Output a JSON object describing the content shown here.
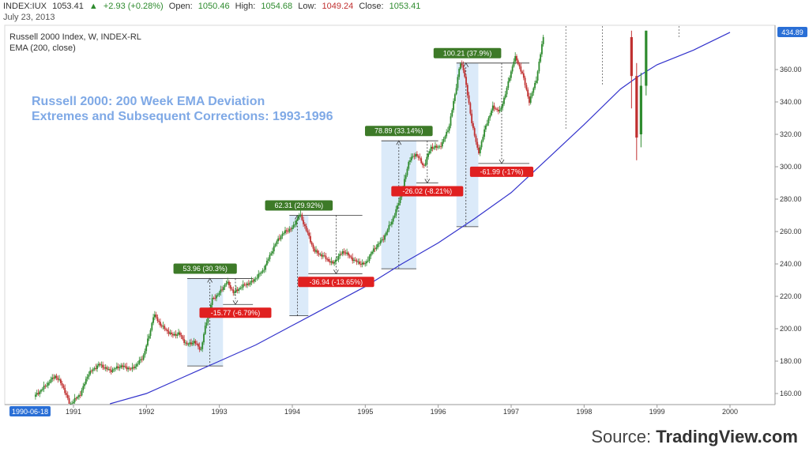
{
  "header": {
    "symbol": "INDEX:IUX",
    "last": "1053.41",
    "change_arrow": "▲",
    "change": "+2.93 (+0.28%)",
    "open_label": "Open:",
    "open": "1050.46",
    "high_label": "High:",
    "high": "1054.68",
    "low_label": "Low:",
    "low": "1049.24",
    "close_label": "Close:",
    "close": "1053.41",
    "date": "July 23, 2013"
  },
  "source": {
    "prefix": "Source:",
    "brand": "TradingView.com"
  },
  "colors": {
    "up": "#2e8b2e",
    "down": "#c03030",
    "ema": "#3333cc",
    "range_fill": "#cfe3f7",
    "gain_badge": "#3d7a28",
    "loss_badge": "#e02020",
    "axis_tag": "#2a6fd6"
  },
  "chart_data": {
    "type": "candlestick",
    "title": "Russell 2000 Index, W, INDEX-RL",
    "indicator": "EMA (200, close)",
    "annotation_title": [
      "Russell 2000: 200 Week EMA Deviation",
      "Extremes and Subsequent Corrections: 1993-1996"
    ],
    "x_ticks": [
      "1991",
      "1992",
      "1993",
      "1994",
      "1995",
      "1996",
      "1997",
      "1998",
      "1999",
      "2000"
    ],
    "x_start_label": "1990-06-18",
    "y_ticks": [
      160,
      180,
      200,
      220,
      240,
      260,
      280,
      300,
      320,
      340,
      360
    ],
    "y_tick_labels": [
      "160.00",
      "180.00",
      "200.00",
      "220.00",
      "240.00",
      "260.00",
      "280.00",
      "300.00",
      "320.00",
      "340.00",
      "360.00"
    ],
    "ylim": [
      150,
      384
    ],
    "last_price_label": "434.89",
    "price_path": [
      [
        1990.46,
        158
      ],
      [
        1990.6,
        164
      ],
      [
        1990.75,
        171
      ],
      [
        1990.85,
        165
      ],
      [
        1990.95,
        153
      ],
      [
        1991.1,
        160
      ],
      [
        1991.2,
        172
      ],
      [
        1991.35,
        178
      ],
      [
        1991.5,
        174
      ],
      [
        1991.65,
        177
      ],
      [
        1991.8,
        175
      ],
      [
        1991.95,
        182
      ],
      [
        1992.05,
        198
      ],
      [
        1992.1,
        209
      ],
      [
        1992.2,
        202
      ],
      [
        1992.35,
        196
      ],
      [
        1992.45,
        197
      ],
      [
        1992.55,
        190
      ],
      [
        1992.65,
        192
      ],
      [
        1992.75,
        187
      ],
      [
        1992.8,
        200
      ],
      [
        1992.9,
        218
      ],
      [
        1993.0,
        222
      ],
      [
        1993.1,
        229
      ],
      [
        1993.2,
        222
      ],
      [
        1993.3,
        226
      ],
      [
        1993.45,
        229
      ],
      [
        1993.6,
        236
      ],
      [
        1993.7,
        246
      ],
      [
        1993.8,
        255
      ],
      [
        1993.9,
        260
      ],
      [
        1994.0,
        262
      ],
      [
        1994.1,
        271
      ],
      [
        1994.2,
        260
      ],
      [
        1994.3,
        248
      ],
      [
        1994.45,
        244
      ],
      [
        1994.55,
        240
      ],
      [
        1994.7,
        248
      ],
      [
        1994.85,
        242
      ],
      [
        1994.95,
        240
      ],
      [
        1995.0,
        240
      ],
      [
        1995.1,
        248
      ],
      [
        1995.25,
        256
      ],
      [
        1995.4,
        270
      ],
      [
        1995.5,
        284
      ],
      [
        1995.6,
        304
      ],
      [
        1995.7,
        308
      ],
      [
        1995.8,
        300
      ],
      [
        1995.9,
        312
      ],
      [
        1996.0,
        312
      ],
      [
        1996.05,
        314
      ],
      [
        1996.15,
        325
      ],
      [
        1996.25,
        350
      ],
      [
        1996.3,
        364
      ],
      [
        1996.35,
        360
      ],
      [
        1996.45,
        330
      ],
      [
        1996.55,
        308
      ],
      [
        1996.65,
        325
      ],
      [
        1996.75,
        337
      ],
      [
        1996.85,
        334
      ],
      [
        1996.95,
        350
      ],
      [
        1997.05,
        368
      ],
      [
        1997.15,
        358
      ],
      [
        1997.25,
        340
      ],
      [
        1997.35,
        355
      ],
      [
        1997.45,
        383
      ]
    ],
    "ema_path": [
      [
        1991.5,
        152
      ],
      [
        1992.0,
        160
      ],
      [
        1992.5,
        170
      ],
      [
        1993.0,
        180
      ],
      [
        1993.5,
        190
      ],
      [
        1994.0,
        202
      ],
      [
        1994.5,
        214
      ],
      [
        1995.0,
        226
      ],
      [
        1995.5,
        240
      ],
      [
        1996.0,
        253
      ],
      [
        1996.5,
        268
      ],
      [
        1997.0,
        284
      ],
      [
        1997.5,
        305
      ],
      [
        1998.0,
        326
      ],
      [
        1998.5,
        348
      ],
      [
        1998.75,
        356
      ],
      [
        1999.0,
        363
      ],
      [
        1999.5,
        372
      ],
      [
        2000.0,
        383
      ]
    ],
    "late_candles": [
      {
        "x": 1998.65,
        "o": 380,
        "c": 356,
        "h": 384,
        "l": 336
      },
      {
        "x": 1998.72,
        "o": 356,
        "c": 318,
        "h": 364,
        "l": 304
      },
      {
        "x": 1998.78,
        "o": 320,
        "c": 350,
        "h": 358,
        "l": 312
      },
      {
        "x": 1998.85,
        "o": 350,
        "c": 384,
        "h": 384,
        "l": 344
      }
    ],
    "late_ticks": [
      {
        "x": 1997.75,
        "y": 323
      },
      {
        "x": 1998.25,
        "y": 350
      },
      {
        "x": 1999.3,
        "y": 380
      }
    ],
    "swings": [
      {
        "rect_x": [
          1992.56,
          1993.05
        ],
        "low": 177,
        "high": 231,
        "vx": 1992.87,
        "gain": "53.96 (30.3%)",
        "loss": "-15.77 (-6.79%)",
        "corr_x": [
          1993.05,
          1993.46
        ],
        "corr_low": 215,
        "corr_vx": 1993.22
      },
      {
        "rect_x": [
          1993.96,
          1994.22
        ],
        "low": 208,
        "high": 270,
        "vx": 1994.07,
        "gain": "62.31 (29.92%)",
        "loss": "-36.94 (-13.65%)",
        "corr_x": [
          1994.22,
          1994.96
        ],
        "corr_low": 234,
        "corr_vx": 1994.6
      },
      {
        "rect_x": [
          1995.22,
          1995.7
        ],
        "low": 237,
        "high": 316,
        "vx": 1995.46,
        "gain": "78.89 (33.14%)",
        "loss": "-26.02 (-8.21%)",
        "corr_x": [
          1995.7,
          1996.0
        ],
        "corr_low": 290,
        "corr_vx": 1995.85
      },
      {
        "rect_x": [
          1996.25,
          1996.55
        ],
        "low": 263,
        "high": 364,
        "vx": 1996.38,
        "gain": "100.21 (37.9%)",
        "loss": "-61.99 (-17%)",
        "corr_x": [
          1996.55,
          1997.25
        ],
        "corr_low": 302,
        "corr_vx": 1996.87
      }
    ]
  }
}
